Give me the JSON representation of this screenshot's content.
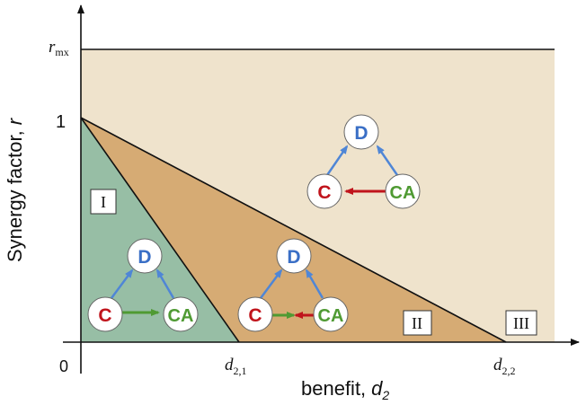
{
  "axes": {
    "y_label": "Synergy factor,",
    "y_symbol": "r",
    "x_label": "benefit,",
    "x_symbol": "d",
    "x_symbol_sub": "2",
    "origin": "0",
    "y_tick_one": "1",
    "y_tick_rmx": "r",
    "y_tick_rmx_sub": "mx",
    "x_tick_d21": "d",
    "x_tick_d21_sub": "2,1",
    "x_tick_d22": "d",
    "x_tick_d22_sub": "2,2"
  },
  "regions": {
    "I": "I",
    "II": "II",
    "III": "III"
  },
  "nodes": {
    "D": "D",
    "C": "C",
    "CA": "CA"
  },
  "colors": {
    "region_top": "#efe3cc",
    "region_mid": "#d6ab74",
    "region_left": "#97bea5",
    "node_D": "#3a6fc6",
    "node_C": "#c0141c",
    "node_CA": "#4f9a33",
    "arrow_blue": "#4f86d6",
    "arrow_red": "#c0141c",
    "arrow_green": "#4f9a33"
  }
}
